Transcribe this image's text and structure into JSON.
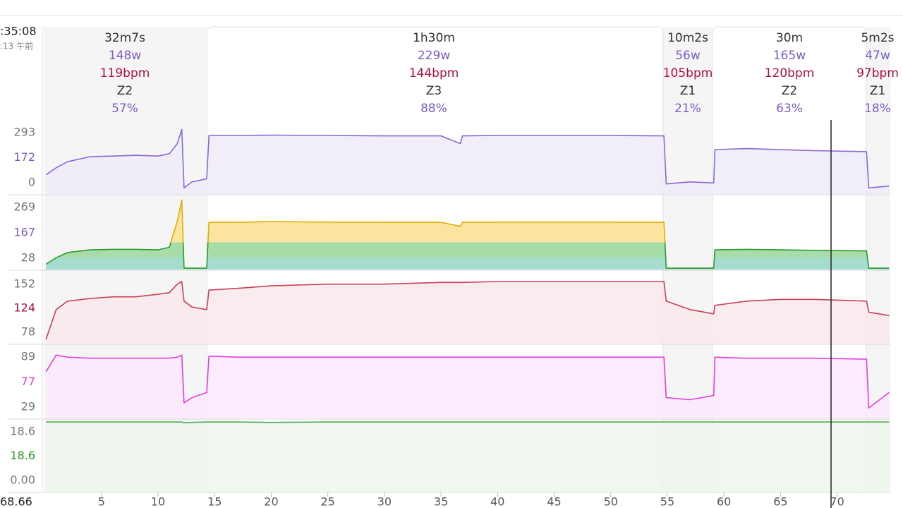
{
  "header": {
    "time": ":35:08",
    "time_sub": ":13 午前",
    "distance": "68.66"
  },
  "segments": [
    {
      "duration": "32m7s",
      "power": "148w",
      "hr": "119bpm",
      "zone": "Z2",
      "percent": "57%"
    },
    {
      "duration": "1h30m",
      "power": "229w",
      "hr": "144bpm",
      "zone": "Z3",
      "percent": "88%"
    },
    {
      "duration": "10m2s",
      "power": "56w",
      "hr": "105bpm",
      "zone": "Z1",
      "percent": "21%"
    },
    {
      "duration": "30m",
      "power": "165w",
      "hr": "120bpm",
      "zone": "Z2",
      "percent": "63%"
    },
    {
      "duration": "5m2s",
      "power": "47w",
      "hr": "97bpm",
      "zone": "Z1",
      "percent": "18%"
    }
  ],
  "chart_data": [
    {
      "type": "area",
      "color": "#8a6ad0",
      "labels": {
        "max": "293",
        "avg": "172",
        "min": "0"
      },
      "ylim": [
        -20,
        340
      ],
      "x": [
        0.1,
        1,
        2,
        4,
        6,
        8,
        10,
        11,
        11.7,
        12.1,
        12.3,
        13,
        14.3,
        14.5,
        17,
        20,
        25,
        30,
        35,
        36.7,
        36.9,
        40,
        45,
        50,
        54.7,
        54.9,
        57,
        59.1,
        59.2,
        62,
        65,
        68,
        72.6,
        72.8,
        74.6
      ],
      "values": [
        75,
        110,
        140,
        165,
        168,
        172,
        168,
        180,
        230,
        300,
        10,
        40,
        55,
        270,
        270,
        272,
        270,
        268,
        268,
        230,
        268,
        270,
        270,
        270,
        268,
        30,
        40,
        35,
        200,
        205,
        200,
        195,
        190,
        10,
        20
      ]
    },
    {
      "type": "zones",
      "color": "#2a9a2a",
      "labels": {
        "max": "269",
        "avg": "167",
        "min": "28"
      },
      "ylim": [
        -5,
        275
      ],
      "x": [
        0.1,
        1,
        2,
        4,
        6,
        8,
        10,
        11,
        11.7,
        12.1,
        12.3,
        13,
        14.3,
        14.5,
        17,
        20,
        25,
        30,
        35,
        36.7,
        36.9,
        40,
        45,
        50,
        54.7,
        54.9,
        57,
        59.1,
        59.2,
        62,
        65,
        68,
        72.6,
        72.8,
        74.6
      ],
      "values": [
        15,
        40,
        60,
        70,
        72,
        72,
        70,
        80,
        180,
        260,
        0,
        0,
        0,
        175,
        175,
        178,
        176,
        175,
        175,
        160,
        175,
        176,
        176,
        176,
        175,
        0,
        0,
        0,
        70,
        72,
        70,
        68,
        66,
        0,
        0
      ]
    },
    {
      "type": "area",
      "color": "#c8405a",
      "labels": {
        "max": "152",
        "avg": "124",
        "min": "78"
      },
      "ylim": [
        75,
        158
      ],
      "x": [
        0.1,
        1,
        2,
        4,
        6,
        8,
        10,
        11,
        11.7,
        12.1,
        12.3,
        13,
        14.3,
        14.5,
        17,
        20,
        25,
        30,
        35,
        36.7,
        36.9,
        40,
        45,
        50,
        54.7,
        54.9,
        57,
        59.1,
        59.2,
        62,
        65,
        68,
        72.6,
        72.8,
        74.6
      ],
      "values": [
        80,
        115,
        125,
        128,
        130,
        130,
        133,
        135,
        145,
        148,
        125,
        118,
        115,
        138,
        140,
        143,
        145,
        145,
        147,
        147,
        147,
        148,
        148,
        148,
        148,
        125,
        115,
        110,
        120,
        125,
        127,
        127,
        125,
        112,
        108
      ]
    },
    {
      "type": "area",
      "color": "#e040e0",
      "labels": {
        "max": "89",
        "avg": "77",
        "min": "29"
      },
      "ylim": [
        25,
        95
      ],
      "x": [
        0.1,
        1,
        2,
        4,
        6,
        8,
        10,
        11,
        11.7,
        12.1,
        12.3,
        13,
        14.3,
        14.5,
        17,
        20,
        25,
        30,
        35,
        36.7,
        36.9,
        40,
        45,
        50,
        54.7,
        54.9,
        57,
        59.1,
        59.2,
        62,
        65,
        68,
        72.6,
        72.8,
        74.6
      ],
      "values": [
        70,
        86,
        84,
        83,
        83,
        83,
        83,
        83,
        84,
        86,
        40,
        45,
        50,
        85,
        84,
        84,
        84,
        84,
        84,
        84,
        84,
        84,
        84,
        84,
        84,
        45,
        43,
        47,
        84,
        83,
        83,
        83,
        82,
        35,
        50
      ]
    },
    {
      "type": "area",
      "color": "#4caf50",
      "labels": {
        "max": "18.6",
        "avg": "18.6",
        "min": "0.00"
      },
      "ylim": [
        0,
        19
      ],
      "x": [
        0.1,
        1,
        2,
        4,
        6,
        8,
        10,
        11,
        11.7,
        12.1,
        12.3,
        13,
        14.3,
        14.5,
        17,
        20,
        25,
        30,
        35,
        36.7,
        36.9,
        40,
        45,
        50,
        54.7,
        54.9,
        57,
        59.1,
        59.2,
        62,
        65,
        68,
        72.6,
        72.8,
        74.6
      ],
      "values": [
        18.6,
        18.6,
        18.6,
        18.6,
        18.6,
        18.6,
        18.6,
        18.6,
        18.6,
        18.6,
        18.4,
        18.5,
        18.6,
        18.6,
        18.6,
        18.5,
        18.6,
        18.6,
        18.6,
        18.6,
        18.6,
        18.6,
        18.6,
        18.6,
        18.6,
        18.6,
        18.6,
        18.6,
        18.6,
        18.6,
        18.6,
        18.6,
        18.6,
        18.6,
        18.6
      ],
      "xlim": [
        -0.1,
        74.7
      ],
      "xticks": [
        5,
        10,
        15,
        20,
        25,
        30,
        35,
        40,
        45,
        50,
        55,
        60,
        65,
        70
      ]
    }
  ]
}
